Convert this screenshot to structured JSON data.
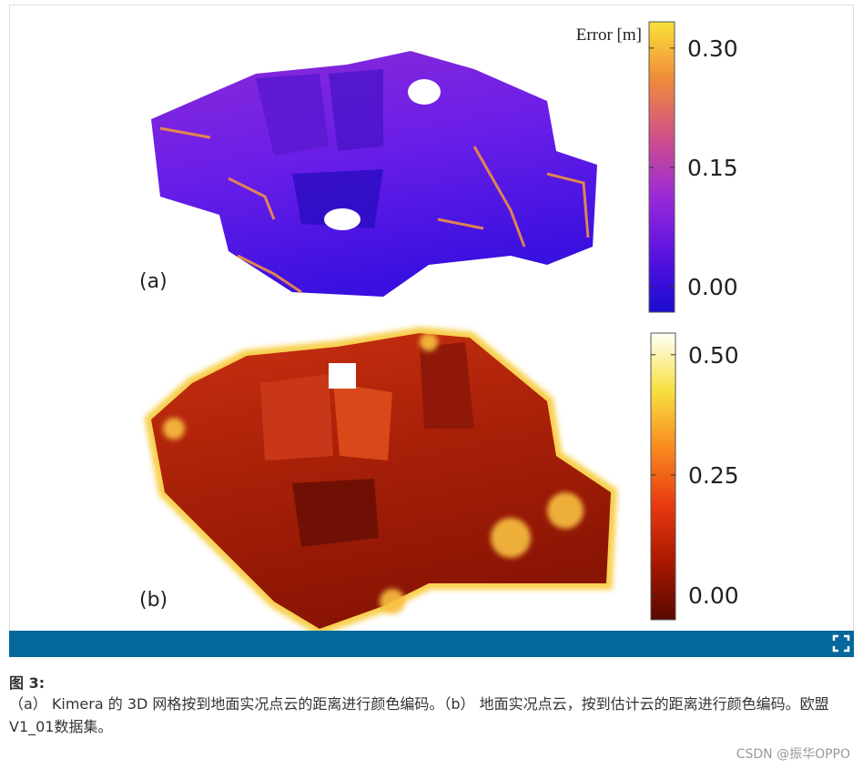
{
  "figure": {
    "panels": [
      {
        "label": "(a)",
        "colorbar": {
          "title": "Error [m]",
          "lim": [
            -0.032,
            0.333
          ],
          "ticks": [
            {
              "value": 0.3,
              "label": "0.30"
            },
            {
              "value": 0.15,
              "label": "0.15"
            },
            {
              "value": 0,
              "label": "0.00"
            }
          ],
          "colors": [
            "#1a0ccf",
            "#5a12e0",
            "#9a2ad8",
            "#d0508a",
            "#f08a3a",
            "#f8e23a"
          ]
        }
      },
      {
        "label": "(b)",
        "colorbar": {
          "lim": [
            -0.051,
            0.545
          ],
          "ticks": [
            {
              "value": 0.5,
              "label": "0.50"
            },
            {
              "value": 0.25,
              "label": "0.25"
            },
            {
              "value": 0,
              "label": "0.00"
            }
          ],
          "colors": [
            "#5a0800",
            "#a81800",
            "#e83a10",
            "#f88a20",
            "#f8e040",
            "#fffff8"
          ]
        }
      }
    ]
  },
  "caption": {
    "heading": "图 3:",
    "text": "（a） Kimera 的 3D 网格按到地面实况点云的距离进行颜色编码。（b） 地面实况点云，按到估计云的距离进行颜色编码。欧盟V1_01数据集。"
  },
  "watermark": "CSDN @振华OPPO"
}
